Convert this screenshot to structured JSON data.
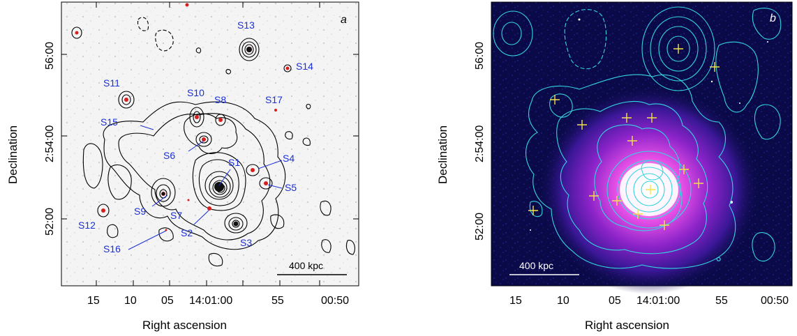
{
  "panels": [
    {
      "id": "a",
      "panel_label": "a",
      "xlabel": "Right ascension",
      "ylabel": "Declination",
      "x_ticks": [
        "15",
        "10",
        "05",
        "14:01:00",
        "55",
        "00:50"
      ],
      "y_ticks": [
        "56:00",
        "2:54:00",
        "52:00"
      ],
      "scale_bar": "400 kpc",
      "sources": [
        "S1",
        "S2",
        "S3",
        "S4",
        "S5",
        "S6",
        "S7",
        "S8",
        "S9",
        "S10",
        "S11",
        "S12",
        "S13",
        "S14",
        "S15",
        "S16",
        "S17"
      ]
    },
    {
      "id": "b",
      "panel_label": "b",
      "xlabel": "Right ascension",
      "ylabel": "Declination",
      "x_ticks": [
        "15",
        "10",
        "05",
        "14:01:00",
        "55",
        "00:50"
      ],
      "y_ticks": [
        "56:00",
        "2:54:00",
        "52:00"
      ],
      "scale_bar": "400 kpc"
    }
  ],
  "colors": {
    "source_label": "#1a2fd6",
    "contour_a": "#000000",
    "contour_b": "#34d6e0",
    "marker_b": "#f2e24a",
    "background_b": "#0a0a48"
  }
}
